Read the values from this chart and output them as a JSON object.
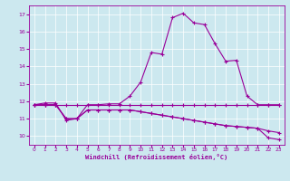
{
  "xlabel": "Windchill (Refroidissement éolien,°C)",
  "background_color": "#cce8ef",
  "line_color": "#990099",
  "xlim": [
    -0.5,
    23.5
  ],
  "ylim": [
    9.5,
    17.5
  ],
  "yticks": [
    10,
    11,
    12,
    13,
    14,
    15,
    16,
    17
  ],
  "xticks": [
    0,
    1,
    2,
    3,
    4,
    5,
    6,
    7,
    8,
    9,
    10,
    11,
    12,
    13,
    14,
    15,
    16,
    17,
    18,
    19,
    20,
    21,
    22,
    23
  ],
  "series_flat_x": [
    0,
    1,
    2,
    3,
    4,
    5,
    6,
    7,
    8,
    9,
    10,
    11,
    12,
    13,
    14,
    15,
    16,
    17,
    18,
    19,
    20,
    21,
    22,
    23
  ],
  "series_flat_y": [
    11.8,
    11.8,
    11.8,
    11.8,
    11.8,
    11.8,
    11.8,
    11.8,
    11.8,
    11.8,
    11.8,
    11.8,
    11.8,
    11.8,
    11.8,
    11.8,
    11.8,
    11.8,
    11.8,
    11.8,
    11.8,
    11.8,
    11.8,
    11.8
  ],
  "series_upper_x": [
    0,
    1,
    2,
    3,
    4,
    5,
    6,
    7,
    8,
    9,
    10,
    11,
    12,
    13,
    14,
    15,
    16,
    17,
    18,
    19,
    20,
    21,
    22,
    23
  ],
  "series_upper_y": [
    11.8,
    11.9,
    11.9,
    10.9,
    11.0,
    11.8,
    11.8,
    11.85,
    11.85,
    12.3,
    13.1,
    14.8,
    14.7,
    16.8,
    17.05,
    16.5,
    16.4,
    15.3,
    14.3,
    14.35,
    12.3,
    11.8,
    11.8,
    11.8
  ],
  "series_lower1_x": [
    0,
    1,
    2,
    3,
    4,
    5,
    6,
    7,
    8,
    9,
    10,
    11,
    12,
    13,
    14,
    15,
    16,
    17,
    18,
    19,
    20,
    21,
    22,
    23
  ],
  "series_lower1_y": [
    11.8,
    11.8,
    11.8,
    11.0,
    11.0,
    11.5,
    11.5,
    11.5,
    11.5,
    11.5,
    11.4,
    11.3,
    11.2,
    11.1,
    11.0,
    10.9,
    10.8,
    10.7,
    10.6,
    10.55,
    10.5,
    10.45,
    10.3,
    10.2
  ],
  "series_lower2_x": [
    0,
    1,
    2,
    3,
    4,
    5,
    6,
    7,
    8,
    9,
    10,
    11,
    12,
    13,
    14,
    15,
    16,
    17,
    18,
    19,
    20,
    21,
    22,
    23
  ],
  "series_lower2_y": [
    11.8,
    11.8,
    11.8,
    11.0,
    11.0,
    11.5,
    11.5,
    11.5,
    11.5,
    11.5,
    11.4,
    11.3,
    11.2,
    11.1,
    11.0,
    10.9,
    10.8,
    10.7,
    10.6,
    10.55,
    10.5,
    10.45,
    9.9,
    9.8
  ]
}
